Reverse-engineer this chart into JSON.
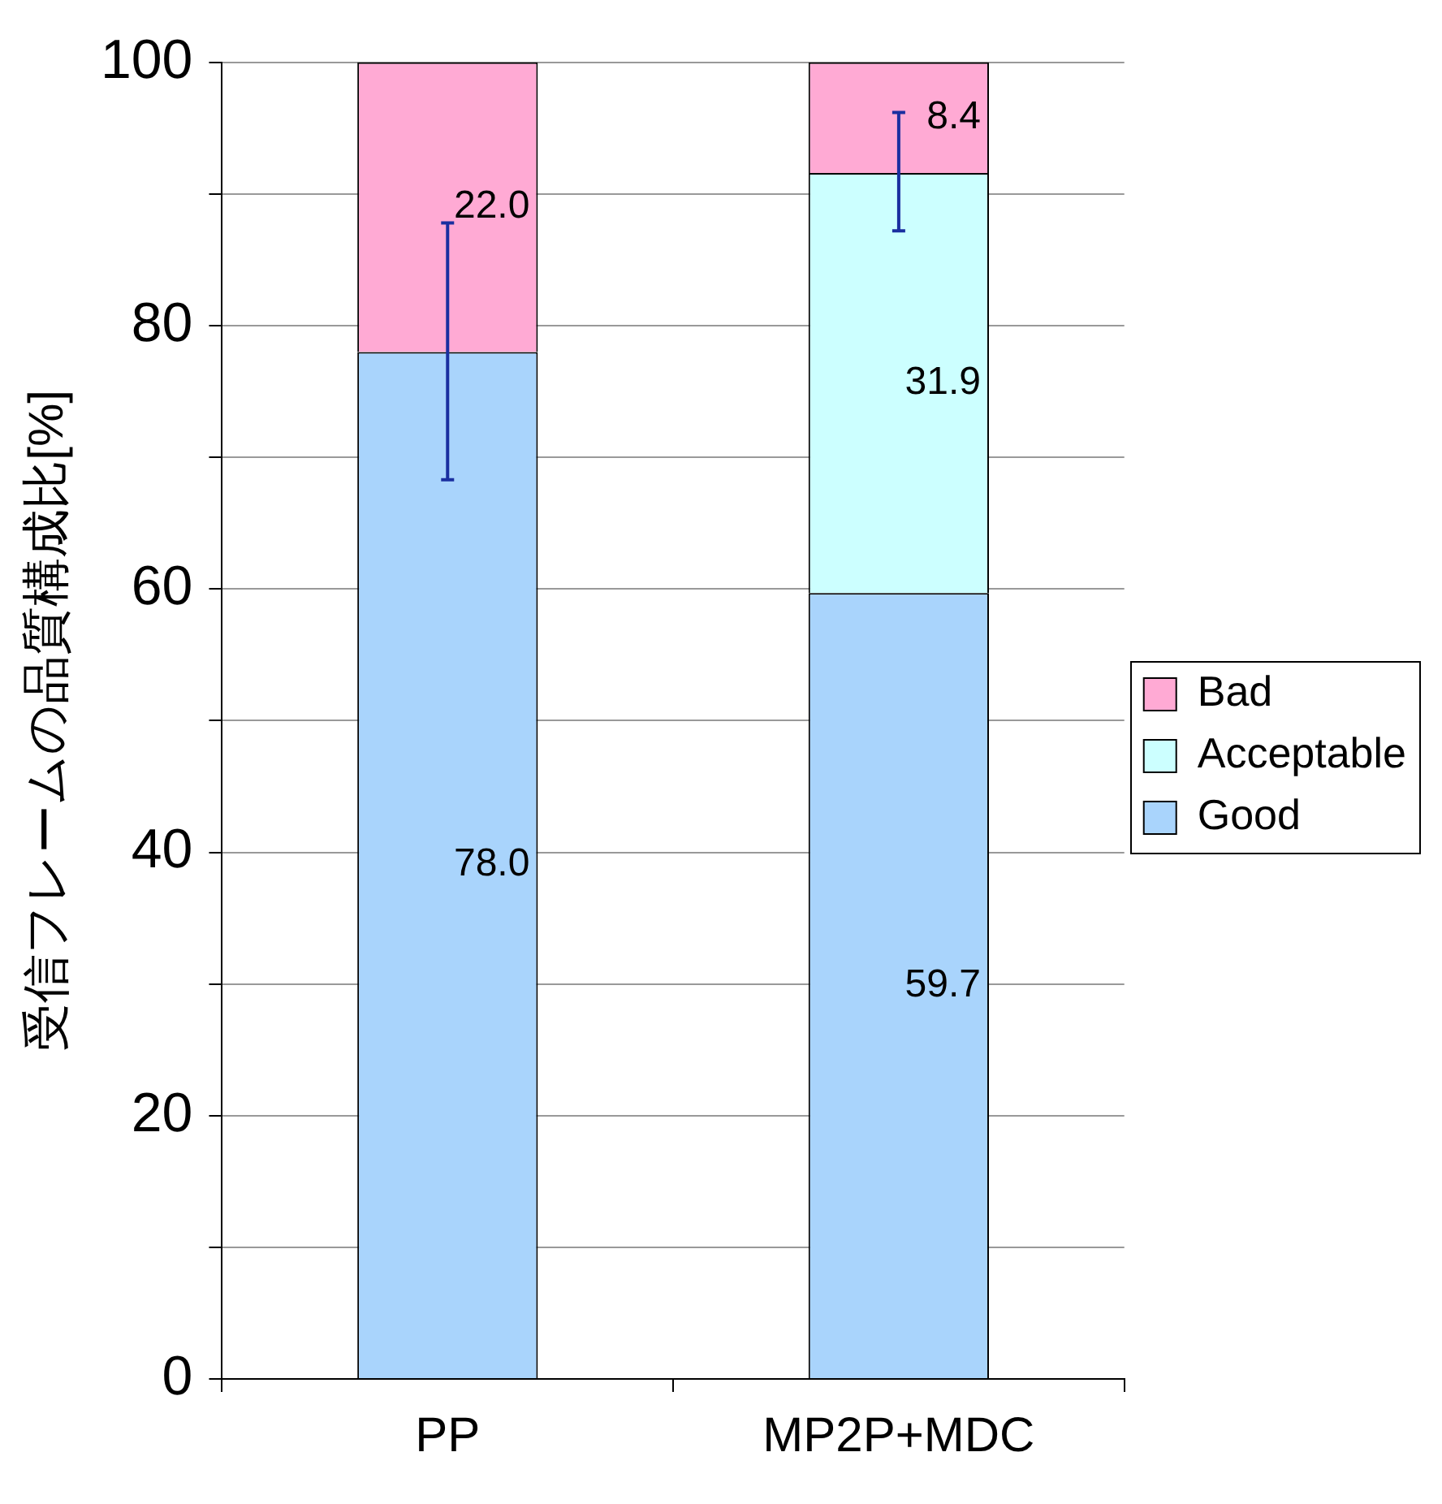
{
  "chart_data": {
    "type": "bar",
    "stacked": true,
    "ylabel": "受信フレームの品質構成比[%]",
    "categories": [
      "PP",
      "MP2P+MDC"
    ],
    "series": [
      {
        "name": "Good",
        "color": "#a9d4fc",
        "values": [
          78.0,
          59.7
        ],
        "value_labels": [
          "78.0",
          "59.7"
        ],
        "errors": [
          [
            68.3,
            87.8
          ],
          null
        ]
      },
      {
        "name": "Acceptable",
        "color": "#ccffff",
        "values": [
          0,
          31.9
        ],
        "value_labels": [
          null,
          "31.9"
        ],
        "errors": [
          null,
          [
            87.2,
            96.2
          ]
        ]
      },
      {
        "name": "Bad",
        "color": "#ffaad4",
        "values": [
          22.0,
          8.4
        ],
        "value_labels": [
          "22.0",
          "8.4"
        ]
      }
    ],
    "ylim": [
      0,
      100
    ],
    "yticks": [
      0,
      {
        "value": 10,
        "label": null
      },
      20,
      {
        "value": 30,
        "label": null
      },
      40,
      {
        "value": 50,
        "label": null
      },
      60,
      {
        "value": 70,
        "label": null
      },
      80,
      {
        "value": 90,
        "label": null
      },
      100
    ],
    "grid": "y",
    "legend": "right"
  }
}
